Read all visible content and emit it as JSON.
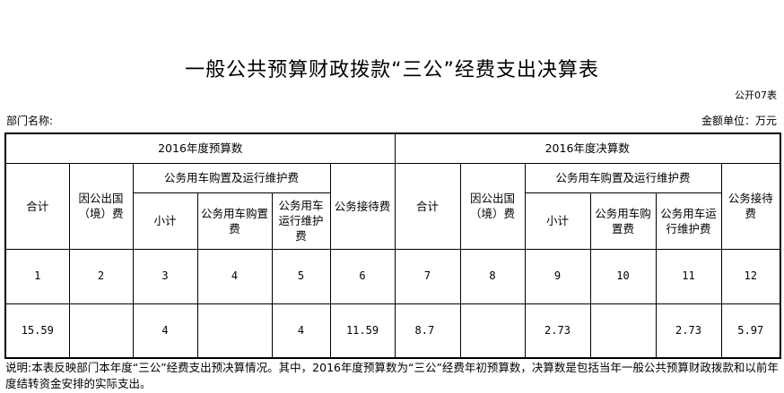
{
  "title": "一般公共预算财政拨款“三公”经费支出决算表",
  "table_code": "公开07表",
  "department_label": "部门名称:",
  "unit_label": "金额单位：万元",
  "table": {
    "groups": [
      "2016年度预算数",
      "2016年度决算数"
    ],
    "col_total": "合计",
    "col_abroad": "因公出国（境）费",
    "col_vehicle_group": "公务用车购置及运行维护费",
    "col_subtotal": "小计",
    "col_purchase": "公务用车购置费",
    "col_operation": "公务用车运行维护费",
    "col_reception": "公务接待费",
    "index_row": [
      "1",
      "2",
      "3",
      "4",
      "5",
      "6",
      "7",
      "8",
      "9",
      "10",
      "11",
      "12"
    ],
    "data_row": [
      "15.59",
      "",
      "4",
      "",
      "4",
      "11.59",
      "8.7",
      "",
      "2.73",
      "",
      "2.73",
      "5.97"
    ]
  },
  "note": "说明:本表反映部门本年度“三公”经费支出预决算情况。其中，2016年度预算数为“三公”经费年初预算数，决算数是包括当年一般公共预算财政拨款和以前年度结转资金安排的实际支出。"
}
